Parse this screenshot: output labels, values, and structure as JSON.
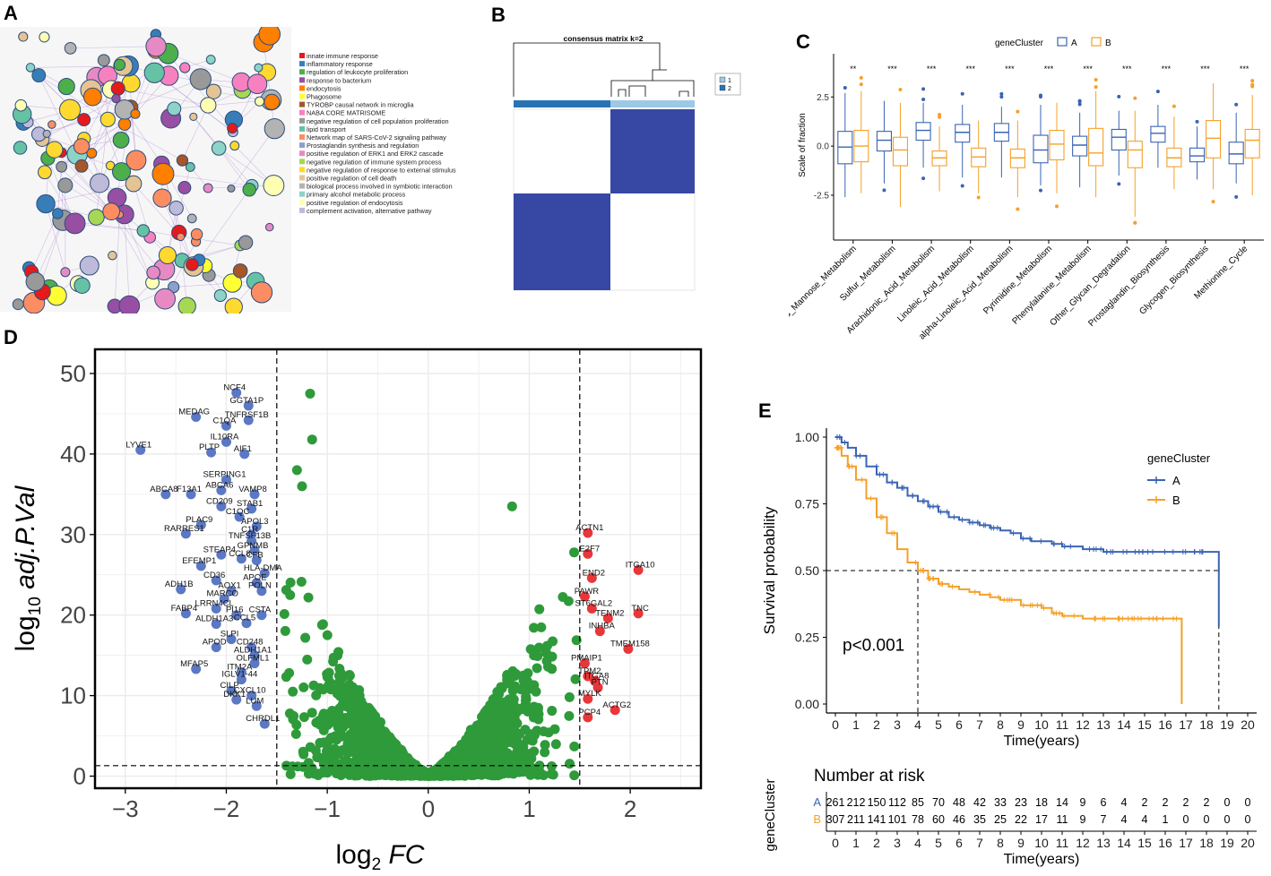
{
  "panel_labels": [
    "A",
    "B",
    "C",
    "D",
    "E"
  ],
  "colors": {
    "cluster_a": "#3a64b4",
    "cluster_b": "#f5a02a",
    "volcano_ns": "#2e9a3a",
    "volcano_down": "#5b78c4",
    "volcano_up": "#e8373a",
    "consensus_dark": "#3648a4",
    "consensus_c1": "#9cc9e6",
    "consensus_c2": "#2873b4"
  },
  "chart_data": [
    {
      "panel": "A",
      "type": "network",
      "legend": [
        {
          "label": "innate immune response",
          "color": "#e41a1c"
        },
        {
          "label": "inflammatory response",
          "color": "#377eb8"
        },
        {
          "label": "regulation of leukocyte proliferation",
          "color": "#4daf4a"
        },
        {
          "label": "response to bacterium",
          "color": "#984ea3"
        },
        {
          "label": "endocytosis",
          "color": "#ff7f00"
        },
        {
          "label": "Phagosome",
          "color": "#ffff33"
        },
        {
          "label": "TYROBP causal network in microglia",
          "color": "#a65628"
        },
        {
          "label": "NABA CORE MATRISOME",
          "color": "#f781bf"
        },
        {
          "label": "negative regulation of cell population proliferation",
          "color": "#999999"
        },
        {
          "label": "lipid transport",
          "color": "#66c2a5"
        },
        {
          "label": "Network map of SARS-CoV-2 signaling pathway",
          "color": "#fc8d62"
        },
        {
          "label": "Prostaglandin synthesis and regulation",
          "color": "#8da0cb"
        },
        {
          "label": "positive regulation of ERK1 and ERK2 cascade",
          "color": "#e78ac3"
        },
        {
          "label": "negative regulation of immune system process",
          "color": "#a6d854"
        },
        {
          "label": "negative regulation of response to external stimulus",
          "color": "#ffd92f"
        },
        {
          "label": "positive regulation of cell death",
          "color": "#e5c494"
        },
        {
          "label": "biological process involved in symbiotic interaction",
          "color": "#b3b3b3"
        },
        {
          "label": "primary alcohol metabolic process",
          "color": "#8dd3c7"
        },
        {
          "label": "positive regulation of endocytosis",
          "color": "#ffffb3"
        },
        {
          "label": "complement activation, alternative pathway",
          "color": "#bebada"
        }
      ]
    },
    {
      "panel": "B",
      "type": "heatmap",
      "title": "consensus matrix k=2",
      "legend": [
        "1",
        "2"
      ],
      "blocks": [
        {
          "rows": "top",
          "cols": "right",
          "value": 1
        },
        {
          "rows": "bottom",
          "cols": "left",
          "value": 1
        }
      ]
    },
    {
      "panel": "C",
      "type": "boxplot",
      "legend_title": "geneCluster",
      "series_names": [
        "A",
        "B"
      ],
      "ylabel": "Scale of fraction",
      "yticks": [
        -2.5,
        0.0,
        2.5
      ],
      "ylim": [
        -4.6,
        4.7
      ],
      "categories": [
        "Fructose_and_Mannose_Metabolism",
        "Sulfur_Metabolism",
        "Arachidonic_Acid_Metabolism",
        "Linoleic_Acid_Metabolism",
        "alpha-Linoleic_Acid_Metabolism",
        "Pyrimidine_Metabolism",
        "Phenylalanine_Metabolism",
        "Other_Glycan_Degradation",
        "Prostaglandin_Biosynthesis",
        "Glycogen_Biosynthesis",
        "Methionine_Cycle"
      ],
      "significance": [
        "**",
        "***",
        "***",
        "***",
        "***",
        "***",
        "***",
        "***",
        "***",
        "***",
        "***"
      ],
      "series": [
        {
          "name": "A",
          "boxes": [
            [
              -2.6,
              -0.9,
              -0.05,
              0.75,
              2.7
            ],
            [
              -1.9,
              -0.25,
              0.3,
              0.75,
              2.3
            ],
            [
              -1.1,
              0.3,
              0.8,
              1.2,
              2.2
            ],
            [
              -1.6,
              0.2,
              0.7,
              1.1,
              2.1
            ],
            [
              -1.6,
              0.25,
              0.7,
              1.15,
              2.0
            ],
            [
              -2.0,
              -0.85,
              -0.2,
              0.55,
              2.1
            ],
            [
              -2.1,
              -0.5,
              0.05,
              0.5,
              1.7
            ],
            [
              -1.5,
              -0.2,
              0.45,
              0.85,
              1.8
            ],
            [
              -1.1,
              0.2,
              0.65,
              1.0,
              2.1
            ],
            [
              -1.7,
              -0.8,
              -0.5,
              -0.1,
              1.0
            ],
            [
              -1.9,
              -0.9,
              -0.4,
              0.2,
              1.7
            ]
          ]
        },
        {
          "name": "B",
          "boxes": [
            [
              -2.4,
              -0.8,
              0.0,
              0.8,
              2.8
            ],
            [
              -3.1,
              -1.0,
              -0.2,
              0.45,
              2.2
            ],
            [
              -2.3,
              -1.0,
              -0.6,
              -0.25,
              1.0
            ],
            [
              -2.4,
              -1.05,
              -0.55,
              -0.1,
              1.3
            ],
            [
              -2.6,
              -1.1,
              -0.6,
              -0.15,
              1.3
            ],
            [
              -2.4,
              -0.7,
              0.1,
              0.8,
              2.2
            ],
            [
              -2.6,
              -1.0,
              -0.35,
              0.9,
              2.8
            ],
            [
              -3.6,
              -1.1,
              -0.2,
              0.25,
              1.8
            ],
            [
              -2.2,
              -1.05,
              -0.6,
              -0.1,
              1.5
            ],
            [
              -2.2,
              -0.6,
              0.4,
              1.3,
              3.2
            ],
            [
              -2.5,
              -0.6,
              0.3,
              0.85,
              2.6
            ]
          ]
        }
      ]
    },
    {
      "panel": "D",
      "type": "scatter",
      "subtype": "volcano",
      "xlabel": "log2 FC",
      "ylabel": "log10 adj.P.Val",
      "xlim": [
        -3.3,
        2.7
      ],
      "ylim": [
        -1.5,
        53
      ],
      "xticks": [
        -3,
        -2,
        -1,
        0,
        1,
        2
      ],
      "yticks": [
        0,
        10,
        20,
        30,
        40,
        50
      ],
      "thresholds": {
        "fc": [
          -1.5,
          1.5
        ],
        "p": 1.3
      },
      "down_genes": [
        {
          "label": "NCF4",
          "x": -1.9,
          "y": 47.6
        },
        {
          "label": "GGTA1P",
          "x": -1.78,
          "y": 46.0
        },
        {
          "label": "MEDAG",
          "x": -2.3,
          "y": 44.6
        },
        {
          "label": "TNFRSF1B",
          "x": -1.78,
          "y": 44.2
        },
        {
          "label": "C1QA",
          "x": -2.0,
          "y": 43.5
        },
        {
          "label": "IL10RA",
          "x": -2.0,
          "y": 41.5
        },
        {
          "label": "LYVE1",
          "x": -2.85,
          "y": 40.5
        },
        {
          "label": "PLTP",
          "x": -2.15,
          "y": 40.2
        },
        {
          "label": "AIF1",
          "x": -1.82,
          "y": 40.0
        },
        {
          "label": "SERPING1",
          "x": -2.0,
          "y": 36.8
        },
        {
          "label": "ABCA6",
          "x": -2.05,
          "y": 35.5
        },
        {
          "label": "ABCA8",
          "x": -2.6,
          "y": 35.0
        },
        {
          "label": "F13A1",
          "x": -2.35,
          "y": 35.0
        },
        {
          "label": "VAMP8",
          "x": -1.72,
          "y": 35.0
        },
        {
          "label": "CD209",
          "x": -2.05,
          "y": 33.5
        },
        {
          "label": "STAB1",
          "x": -1.75,
          "y": 33.2
        },
        {
          "label": "C1QC",
          "x": -1.87,
          "y": 32.2
        },
        {
          "label": "PLAC9",
          "x": -2.25,
          "y": 31.2
        },
        {
          "label": "APOL3",
          "x": -1.7,
          "y": 31.0
        },
        {
          "label": "RARRES1",
          "x": -2.4,
          "y": 30.1
        },
        {
          "label": "C1R",
          "x": -1.75,
          "y": 30.0
        },
        {
          "label": "TNFSF13B",
          "x": -1.75,
          "y": 29.2
        },
        {
          "label": "GPNMB",
          "x": -1.72,
          "y": 28.0
        },
        {
          "label": "STEAP4",
          "x": -2.05,
          "y": 27.5
        },
        {
          "label": "CCL8",
          "x": -1.85,
          "y": 27.0
        },
        {
          "label": "CFB",
          "x": -1.7,
          "y": 26.8
        },
        {
          "label": "EFEMP1",
          "x": -2.25,
          "y": 26.1
        },
        {
          "label": "HLA-DMA",
          "x": -1.62,
          "y": 25.2
        },
        {
          "label": "CD36",
          "x": -2.1,
          "y": 24.3
        },
        {
          "label": "APOE",
          "x": -1.7,
          "y": 24.0
        },
        {
          "label": "ADH1B",
          "x": -2.45,
          "y": 23.2
        },
        {
          "label": "AOX1",
          "x": -1.95,
          "y": 23.0
        },
        {
          "label": "POLN",
          "x": -1.65,
          "y": 23.0
        },
        {
          "label": "MARCO",
          "x": -2.02,
          "y": 22.0
        },
        {
          "label": "LRRN4CL",
          "x": -2.1,
          "y": 20.8
        },
        {
          "label": "FABP4",
          "x": -2.4,
          "y": 20.2
        },
        {
          "label": "PI16",
          "x": -1.9,
          "y": 20.0
        },
        {
          "label": "CSTA",
          "x": -1.65,
          "y": 20.0
        },
        {
          "label": "ALDH1A3",
          "x": -2.1,
          "y": 18.9
        },
        {
          "label": "CCL5",
          "x": -1.8,
          "y": 19.0
        },
        {
          "label": "SLPI",
          "x": -1.95,
          "y": 17.0
        },
        {
          "label": "CD248",
          "x": -1.75,
          "y": 16.0
        },
        {
          "label": "APOD",
          "x": -2.1,
          "y": 16.0
        },
        {
          "label": "ALDH1A1",
          "x": -1.72,
          "y": 15.0
        },
        {
          "label": "MFAP5",
          "x": -2.3,
          "y": 13.3
        },
        {
          "label": "OLFML1",
          "x": -1.72,
          "y": 14.0
        },
        {
          "label": "ITM2A",
          "x": -1.85,
          "y": 12.9
        },
        {
          "label": "IGLV1-44",
          "x": -1.85,
          "y": 12.0
        },
        {
          "label": "CILP",
          "x": -1.95,
          "y": 10.6
        },
        {
          "label": "CXCL10",
          "x": -1.75,
          "y": 10.0
        },
        {
          "label": "DKK1",
          "x": -1.9,
          "y": 9.5
        },
        {
          "label": "LUM",
          "x": -1.7,
          "y": 8.7
        },
        {
          "label": "CHRDL1",
          "x": -1.62,
          "y": 6.5
        }
      ],
      "up_genes": [
        {
          "label": "ACTN1",
          "x": 1.58,
          "y": 30.2
        },
        {
          "label": "E2F7",
          "x": 1.58,
          "y": 27.6
        },
        {
          "label": "ITGA10",
          "x": 2.08,
          "y": 25.6
        },
        {
          "label": "END2",
          "x": 1.62,
          "y": 24.6
        },
        {
          "label": "PAWR",
          "x": 1.55,
          "y": 22.3
        },
        {
          "label": "ST6GAL2",
          "x": 1.62,
          "y": 20.8
        },
        {
          "label": "TNC",
          "x": 2.08,
          "y": 20.2
        },
        {
          "label": "TENM2",
          "x": 1.78,
          "y": 19.6
        },
        {
          "label": "INHBA",
          "x": 1.7,
          "y": 18.0
        },
        {
          "label": "TMEM158",
          "x": 1.98,
          "y": 15.8
        },
        {
          "label": "PMAIP1",
          "x": 1.55,
          "y": 14.0
        },
        {
          "label": "TPM2",
          "x": 1.58,
          "y": 12.4
        },
        {
          "label": "ITGA8",
          "x": 1.65,
          "y": 11.8
        },
        {
          "label": "PTN",
          "x": 1.68,
          "y": 11.0
        },
        {
          "label": "MYLK",
          "x": 1.58,
          "y": 9.6
        },
        {
          "label": "ACTG2",
          "x": 1.85,
          "y": 8.2
        },
        {
          "label": "PCP4",
          "x": 1.58,
          "y": 7.3
        }
      ]
    },
    {
      "panel": "E",
      "type": "line",
      "subtype": "kaplan-meier",
      "legend_title": "geneCluster",
      "xlabel": "Time(years)",
      "ylabel": "Survival probability",
      "xlim": [
        0,
        20
      ],
      "ylim": [
        0,
        1
      ],
      "xticks": [
        0,
        1,
        2,
        3,
        4,
        5,
        6,
        7,
        8,
        9,
        10,
        11,
        12,
        13,
        14,
        15,
        16,
        17,
        18,
        19,
        20
      ],
      "yticks": [
        "0.00",
        "0.25",
        "0.50",
        "0.75",
        "1.00"
      ],
      "annotation": "p<0.001",
      "median_survival_B": 4.0,
      "series": [
        {
          "name": "A",
          "x": [
            0,
            0.3,
            0.6,
            1,
            1.5,
            2,
            2.5,
            3,
            3.5,
            4,
            4.5,
            5,
            5.5,
            6,
            6.5,
            7,
            7.5,
            8,
            8.5,
            9,
            9.5,
            10,
            10.5,
            11,
            12,
            13,
            14,
            15,
            16,
            17,
            18.6,
            18.6
          ],
          "y": [
            1.0,
            0.98,
            0.96,
            0.93,
            0.89,
            0.86,
            0.83,
            0.81,
            0.78,
            0.76,
            0.74,
            0.72,
            0.7,
            0.69,
            0.68,
            0.67,
            0.66,
            0.65,
            0.64,
            0.62,
            0.61,
            0.61,
            0.6,
            0.59,
            0.58,
            0.57,
            0.57,
            0.57,
            0.57,
            0.57,
            0.57,
            0.29
          ]
        },
        {
          "name": "B",
          "x": [
            0,
            0.3,
            0.6,
            1,
            1.5,
            2,
            2.5,
            3,
            3.5,
            4,
            4.5,
            5,
            5.5,
            6,
            6.5,
            7,
            7.5,
            8,
            9,
            9.5,
            10,
            10.5,
            11,
            12,
            13,
            14,
            15,
            16,
            16.8,
            16.8
          ],
          "y": [
            0.96,
            0.93,
            0.89,
            0.84,
            0.77,
            0.7,
            0.64,
            0.58,
            0.53,
            0.5,
            0.47,
            0.45,
            0.44,
            0.43,
            0.42,
            0.41,
            0.4,
            0.39,
            0.37,
            0.37,
            0.36,
            0.34,
            0.33,
            0.32,
            0.32,
            0.32,
            0.32,
            0.32,
            0.32,
            0.0
          ]
        }
      ],
      "risk_table": {
        "title": "Number at risk",
        "ylabel": "geneCluster",
        "xlabel": "Time(years)",
        "rows": [
          {
            "name": "A",
            "values": [
              261,
              212,
              150,
              112,
              85,
              70,
              48,
              42,
              33,
              23,
              18,
              14,
              9,
              6,
              4,
              2,
              2,
              2,
              2,
              0,
              0
            ]
          },
          {
            "name": "B",
            "values": [
              307,
              211,
              141,
              101,
              78,
              60,
              46,
              35,
              25,
              22,
              17,
              11,
              9,
              7,
              4,
              4,
              1,
              0,
              0,
              0,
              0
            ]
          }
        ]
      }
    }
  ]
}
